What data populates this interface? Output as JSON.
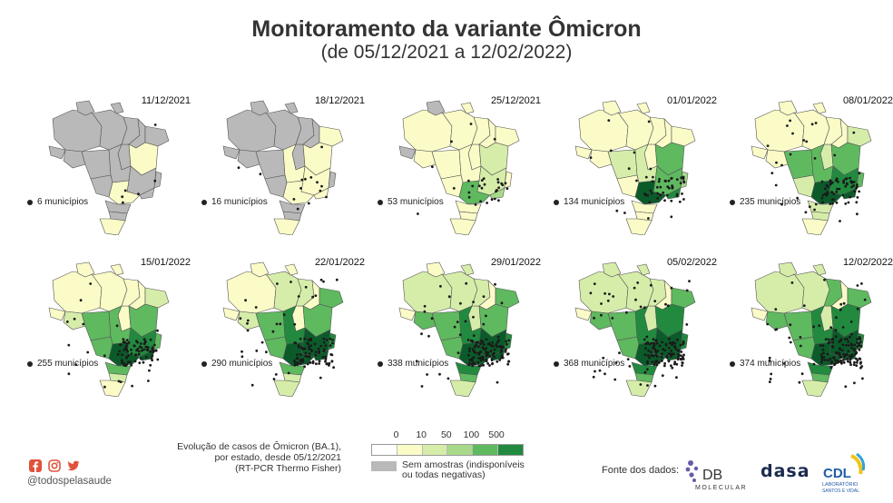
{
  "header": {
    "title": "Monitoramento da variante Ômicron",
    "subtitle": "(de 05/12/2021 a 12/02/2022)"
  },
  "colors": {
    "no_data": "#b9b9b9",
    "scale": [
      "#ffffff",
      "#fbfbc8",
      "#d6edaa",
      "#a8d98a",
      "#5fb95f",
      "#218a3e",
      "#0b5b2a"
    ],
    "marker": "#1a1a1a"
  },
  "panels": [
    {
      "date": "11/12/2021",
      "count": "6 municípios",
      "level": 0
    },
    {
      "date": "18/12/2021",
      "count": "16 municípios",
      "level": 1
    },
    {
      "date": "25/12/2021",
      "count": "53 municípios",
      "level": 2
    },
    {
      "date": "01/01/2022",
      "count": "134 municípios",
      "level": 3
    },
    {
      "date": "08/01/2022",
      "count": "235 municípios",
      "level": 4
    },
    {
      "date": "15/01/2022",
      "count": "255 municípios",
      "level": 5
    },
    {
      "date": "22/01/2022",
      "count": "290 municípios",
      "level": 6
    },
    {
      "date": "29/01/2022",
      "count": "338 municípios",
      "level": 7
    },
    {
      "date": "05/02/2022",
      "count": "368 municípios",
      "level": 8
    },
    {
      "date": "12/02/2022",
      "count": "374 municípios",
      "level": 9
    }
  ],
  "legend": {
    "description_lines": [
      "Evolução de casos de Ômicron (BA.1),",
      "por estado, desde 05/12/2021",
      "(RT-PCR Thermo Fisher)"
    ],
    "ticks": [
      "0",
      "10",
      "50",
      "100",
      "500"
    ],
    "no_data_lines": [
      "Sem amostras (indisponíveis",
      "ou todas negativas)"
    ]
  },
  "footer": {
    "handle": "@todospelasaude",
    "source_label": "Fonte dos dados:",
    "logos": [
      "DB Molecular",
      "dasa",
      "CDL"
    ],
    "logo_text": {
      "db": "DB",
      "db_sub": "MOLECULAR",
      "dasa": "dasa",
      "cdl": "CDL",
      "cdl_sub": "LABORATÓRIO"
    }
  }
}
